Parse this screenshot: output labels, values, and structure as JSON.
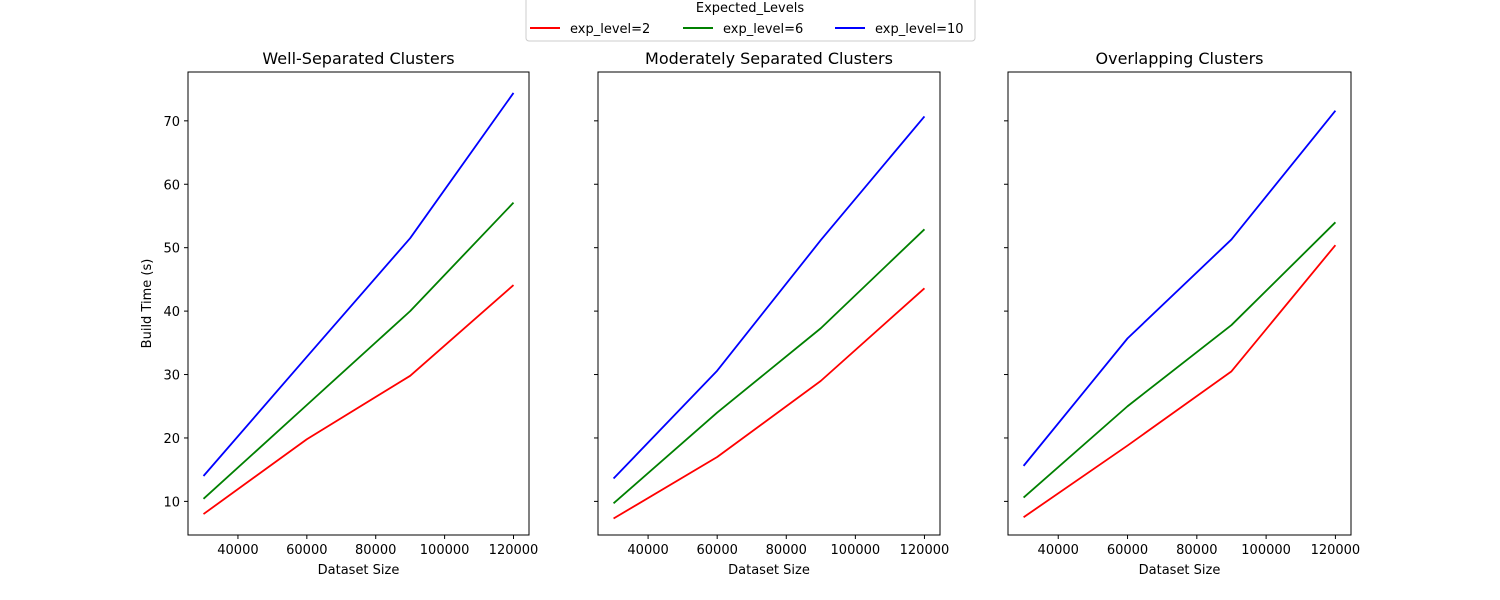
{
  "legend": {
    "title": "Expected_Levels",
    "placement": "top-center",
    "entries": [
      {
        "label": "exp_level=2",
        "color": "#ff0000"
      },
      {
        "label": "exp_level=6",
        "color": "#008000"
      },
      {
        "label": "exp_level=10",
        "color": "#0000ff"
      }
    ]
  },
  "chart_data": [
    {
      "type": "line",
      "title": "Well-Separated Clusters",
      "xlabel": "Dataset Size",
      "ylabel": "Build Time (s)",
      "x": [
        30000,
        60000,
        90000,
        120000
      ],
      "xlim": [
        25500,
        124500
      ],
      "ylim": [
        4.7,
        77.7
      ],
      "xticks": [
        40000,
        60000,
        80000,
        100000,
        120000
      ],
      "yticks": [
        10,
        20,
        30,
        40,
        50,
        60,
        70
      ],
      "show_yticklabels": true,
      "grid": false,
      "series": [
        {
          "name": "exp_level=2",
          "color": "#ff0000",
          "values": [
            8.0,
            19.8,
            29.8,
            44.1
          ]
        },
        {
          "name": "exp_level=6",
          "color": "#008000",
          "values": [
            10.4,
            25.2,
            40.0,
            57.1
          ]
        },
        {
          "name": "exp_level=10",
          "color": "#0000ff",
          "values": [
            14.0,
            32.8,
            51.5,
            74.4
          ]
        }
      ]
    },
    {
      "type": "line",
      "title": "Moderately Separated Clusters",
      "xlabel": "Dataset Size",
      "ylabel": "",
      "x": [
        30000,
        60000,
        90000,
        120000
      ],
      "xlim": [
        25500,
        124500
      ],
      "ylim": [
        4.7,
        77.7
      ],
      "xticks": [
        40000,
        60000,
        80000,
        100000,
        120000
      ],
      "yticks": [
        10,
        20,
        30,
        40,
        50,
        60,
        70
      ],
      "show_yticklabels": false,
      "grid": false,
      "series": [
        {
          "name": "exp_level=2",
          "color": "#ff0000",
          "values": [
            7.3,
            17.0,
            29.0,
            43.6
          ]
        },
        {
          "name": "exp_level=6",
          "color": "#008000",
          "values": [
            9.7,
            24.0,
            37.3,
            52.9
          ]
        },
        {
          "name": "exp_level=10",
          "color": "#0000ff",
          "values": [
            13.6,
            30.6,
            51.2,
            70.7
          ]
        }
      ]
    },
    {
      "type": "line",
      "title": "Overlapping Clusters",
      "xlabel": "Dataset Size",
      "ylabel": "",
      "x": [
        30000,
        60000,
        90000,
        120000
      ],
      "xlim": [
        25500,
        124500
      ],
      "ylim": [
        4.7,
        77.7
      ],
      "xticks": [
        40000,
        60000,
        80000,
        100000,
        120000
      ],
      "yticks": [
        10,
        20,
        30,
        40,
        50,
        60,
        70
      ],
      "show_yticklabels": false,
      "grid": false,
      "series": [
        {
          "name": "exp_level=2",
          "color": "#ff0000",
          "values": [
            7.5,
            18.8,
            30.5,
            50.4
          ]
        },
        {
          "name": "exp_level=6",
          "color": "#008000",
          "values": [
            10.6,
            25.0,
            37.8,
            54.0
          ]
        },
        {
          "name": "exp_level=10",
          "color": "#0000ff",
          "values": [
            15.6,
            35.7,
            51.3,
            71.6
          ]
        }
      ]
    }
  ]
}
